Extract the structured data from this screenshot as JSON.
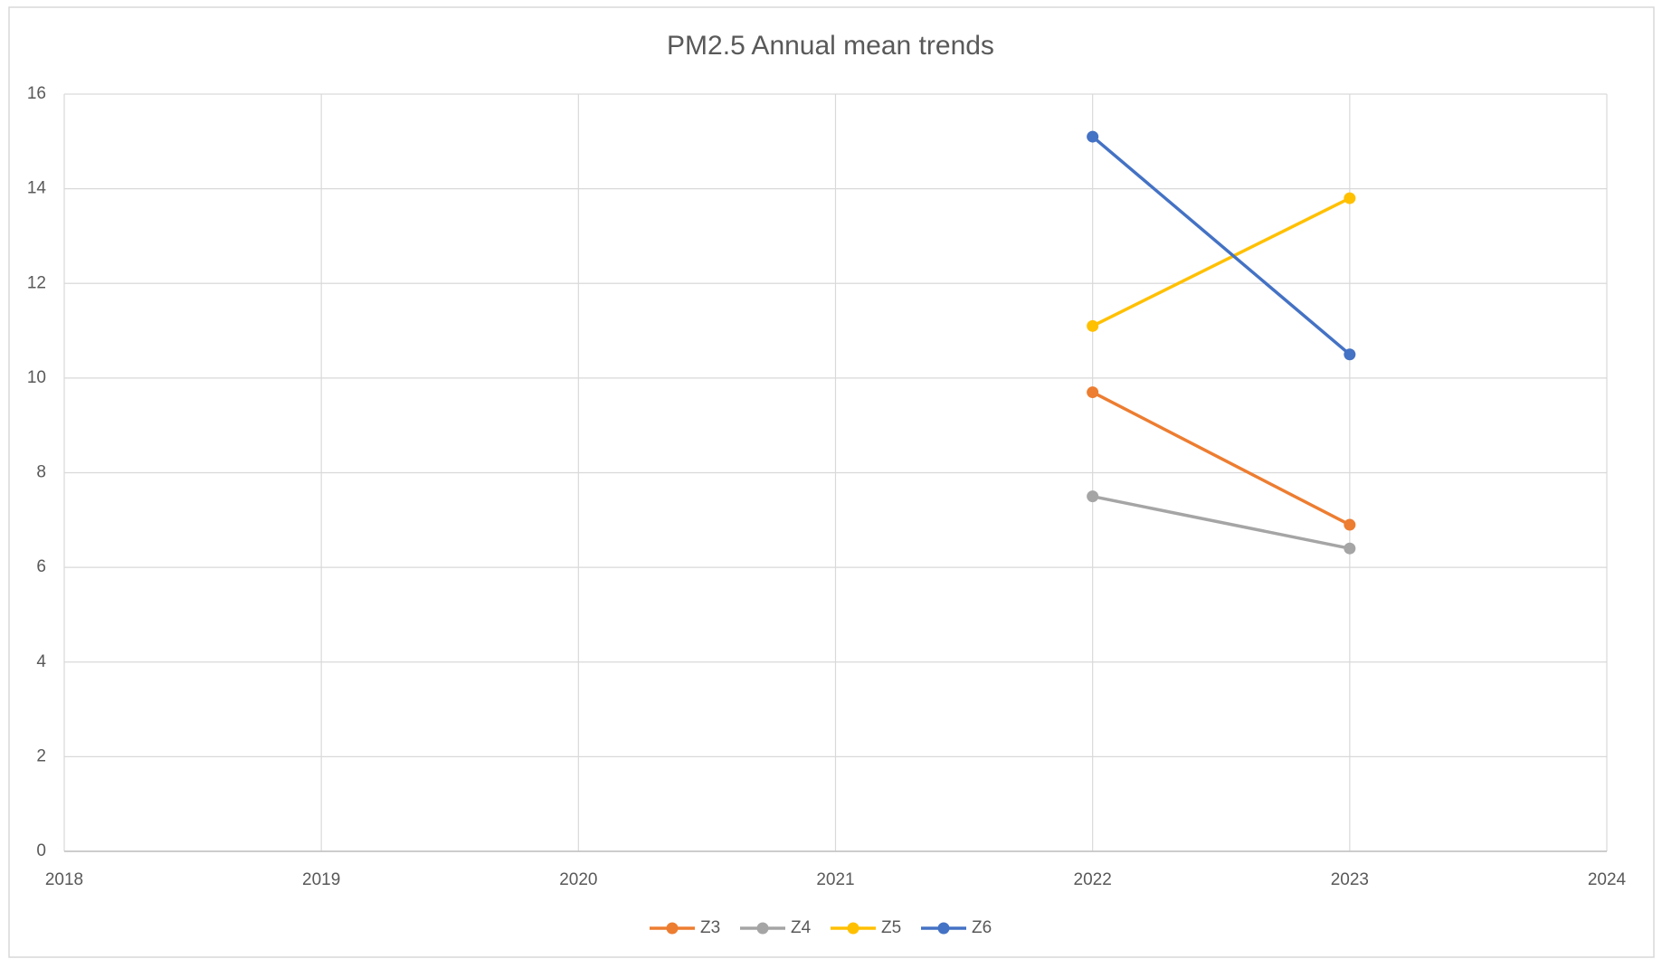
{
  "chart_data": {
    "type": "line",
    "title": "PM2.5 Annual mean trends",
    "x": [
      2022,
      2023
    ],
    "series": [
      {
        "name": "Z3",
        "color": "#ed7d31",
        "values": [
          9.7,
          6.9
        ]
      },
      {
        "name": "Z4",
        "color": "#a5a5a5",
        "values": [
          7.5,
          6.4
        ]
      },
      {
        "name": "Z5",
        "color": "#ffc000",
        "values": [
          11.1,
          13.8
        ]
      },
      {
        "name": "Z6",
        "color": "#4472c4",
        "values": [
          15.1,
          10.5
        ]
      }
    ],
    "xlim": [
      2018,
      2024
    ],
    "xticks": [
      2018,
      2019,
      2020,
      2021,
      2022,
      2023,
      2024
    ],
    "ylim": [
      0,
      16
    ],
    "yticks": [
      0,
      2,
      4,
      6,
      8,
      10,
      12,
      14,
      16
    ],
    "grid": true,
    "legend": "bottom"
  }
}
